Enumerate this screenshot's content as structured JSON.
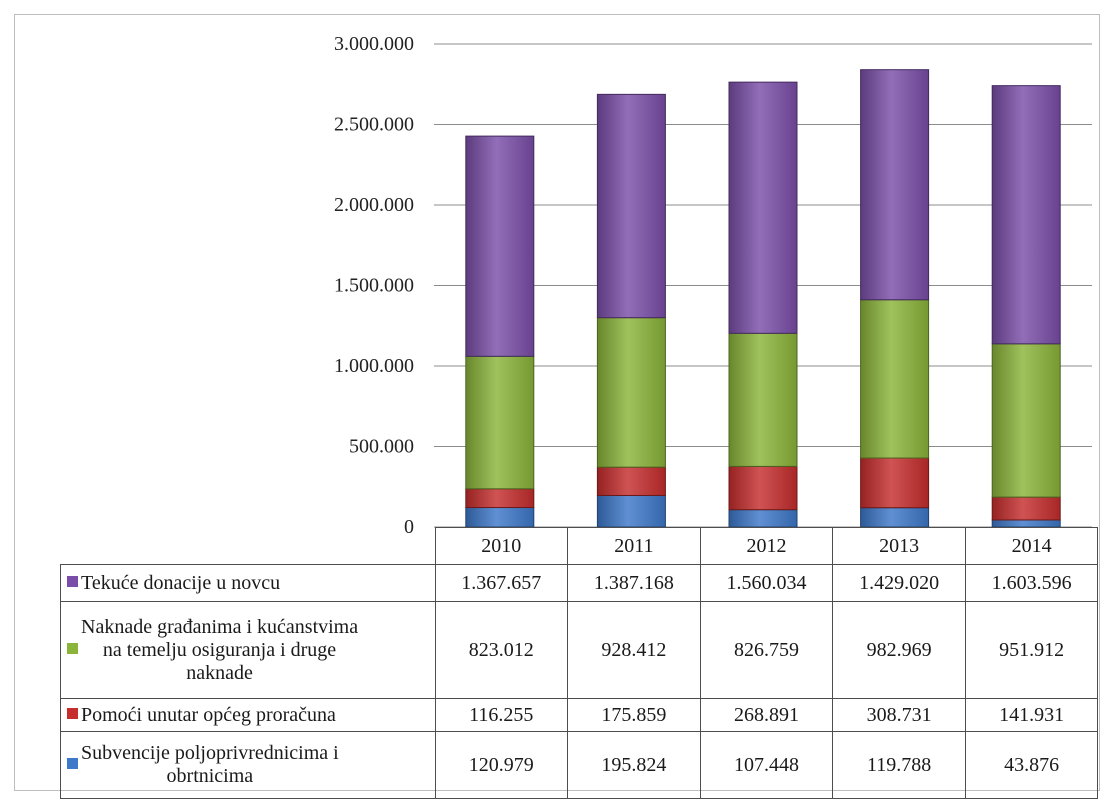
{
  "colors": {
    "tekuce": "#7a4ea8",
    "naknade": "#8bb43a",
    "pomoci": "#c62d2d",
    "subvencije": "#3d78c9"
  },
  "chart_data": {
    "type": "bar",
    "stacked": true,
    "categories": [
      "2010",
      "2011",
      "2012",
      "2013",
      "2014"
    ],
    "series": [
      {
        "name": "Subvencije poljoprivrednicima i obrtnicima",
        "values": [
          120979,
          195824,
          107448,
          119788,
          43876
        ],
        "color_key": "subvencije"
      },
      {
        "name": "Pomoći unutar općeg proračuna",
        "values": [
          116255,
          175859,
          268891,
          308731,
          141931
        ],
        "color_key": "pomoci"
      },
      {
        "name": "Naknade građanima i kućanstvima na temelju osiguranja i druge naknade",
        "values": [
          823012,
          928412,
          826759,
          982969,
          951912
        ],
        "color_key": "naknade"
      },
      {
        "name": "Tekuće donacije u novcu",
        "values": [
          1367657,
          1387168,
          1560034,
          1429020,
          1603596
        ],
        "color_key": "tekuce"
      }
    ],
    "ylim": [
      0,
      3000000
    ],
    "yticks": [
      0,
      500000,
      1000000,
      1500000,
      2000000,
      2500000,
      3000000
    ],
    "ytick_labels": [
      "0",
      "500.000",
      "1.000.000",
      "1.500.000",
      "2.000.000",
      "2.500.000",
      "3.000.000"
    ],
    "grid": true,
    "legend": "data-table",
    "table": {
      "rows": [
        {
          "label": "Tekuće donacije u novcu",
          "label_lines": [
            "Tekuće donacije u novcu"
          ],
          "color_key": "tekuce",
          "values": [
            "1.367.657",
            "1.387.168",
            "1.560.034",
            "1.429.020",
            "1.603.596"
          ]
        },
        {
          "label": "Naknade građanima i kućanstvima na temelju osiguranja i druge naknade",
          "label_lines": [
            "Naknade građanima i kućanstvima",
            "na temelju osiguranja i druge",
            "naknade"
          ],
          "color_key": "naknade",
          "values": [
            "823.012",
            "928.412",
            "826.759",
            "982.969",
            "951.912"
          ]
        },
        {
          "label": "Pomoći unutar općeg proračuna",
          "label_lines": [
            "Pomoći unutar općeg proračuna"
          ],
          "color_key": "pomoci",
          "values": [
            "116.255",
            "175.859",
            "268.891",
            "308.731",
            "141.931"
          ]
        },
        {
          "label": "Subvencije poljoprivrednicima i obrtnicima",
          "label_lines": [
            "Subvencije poljoprivrednicima i",
            "obrtnicima"
          ],
          "color_key": "subvencije",
          "values": [
            "120.979",
            "195.824",
            "107.448",
            "119.788",
            "43.876"
          ]
        }
      ]
    }
  }
}
